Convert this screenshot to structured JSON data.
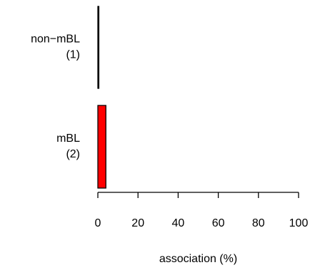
{
  "chart_data": {
    "type": "bar",
    "orientation": "horizontal",
    "categories": [
      {
        "name": "non−mBL",
        "count": "(1)"
      },
      {
        "name": "mBL",
        "count": "(2)"
      }
    ],
    "values": [
      0.5,
      4
    ],
    "colors": [
      "#000000",
      "#ff0000"
    ],
    "xlabel": "association (%)",
    "xlim": [
      0,
      100
    ],
    "xticks": [
      "0",
      "20",
      "40",
      "60",
      "80",
      "100"
    ],
    "grid": false,
    "legend": "none"
  }
}
